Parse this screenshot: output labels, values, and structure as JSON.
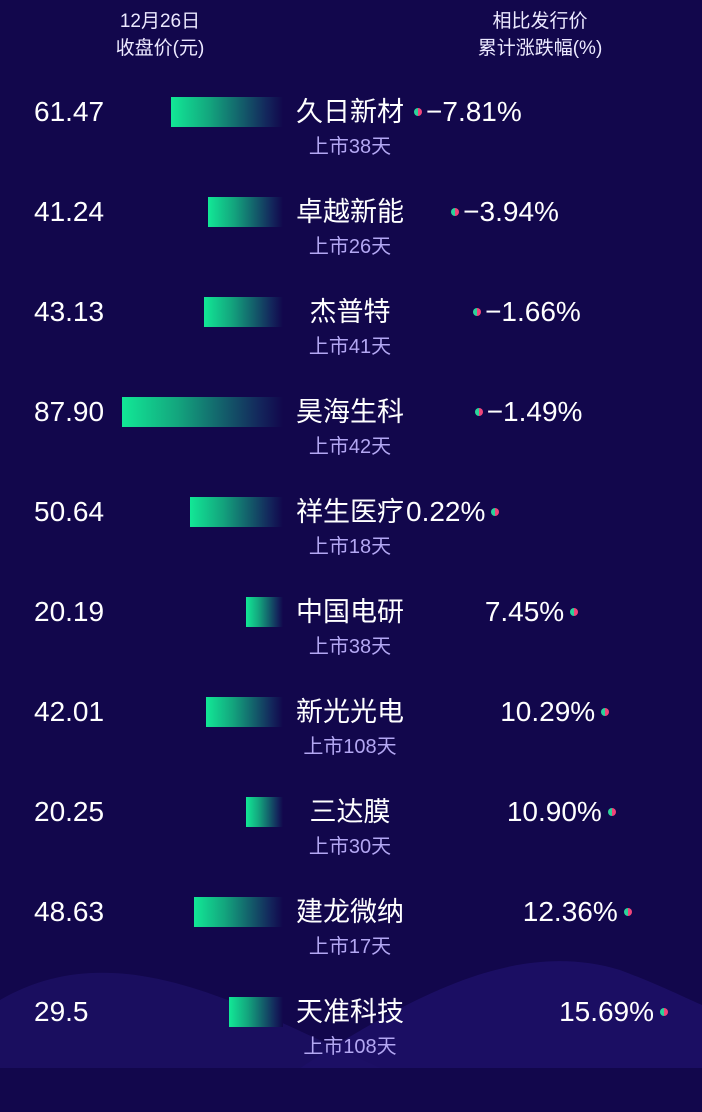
{
  "header": {
    "left_line1": "12月26日",
    "left_line2": "收盘价(元)",
    "right_line1": "相比发行价",
    "right_line2": "累计涨跌幅(%)"
  },
  "colors": {
    "background": "#12074c",
    "bar_start": "#12e896",
    "dot_green": "#2bd39a",
    "dot_red": "#f0457a"
  },
  "chart_data": {
    "type": "bar",
    "rows": [
      {
        "name": "久日新材",
        "price": 61.47,
        "price_label": "61.47",
        "change": -7.81,
        "change_label": "−7.81%",
        "listed": "上市38天"
      },
      {
        "name": "卓越新能",
        "price": 41.24,
        "price_label": "41.24",
        "change": -3.94,
        "change_label": "−3.94%",
        "listed": "上市26天"
      },
      {
        "name": "杰普特",
        "price": 43.13,
        "price_label": "43.13",
        "change": -1.66,
        "change_label": "−1.66%",
        "listed": "上市41天"
      },
      {
        "name": "昊海生科",
        "price": 87.9,
        "price_label": "87.90",
        "change": -1.49,
        "change_label": "−1.49%",
        "listed": "上市42天"
      },
      {
        "name": "祥生医疗",
        "price": 50.64,
        "price_label": "50.64",
        "change": 0.22,
        "change_label": "0.22%",
        "listed": "上市18天"
      },
      {
        "name": "中国电研",
        "price": 20.19,
        "price_label": "20.19",
        "change": 7.45,
        "change_label": "7.45%",
        "listed": "上市38天"
      },
      {
        "name": "新光光电",
        "price": 42.01,
        "price_label": "42.01",
        "change": 10.29,
        "change_label": "10.29%",
        "listed": "上市108天"
      },
      {
        "name": "三达膜",
        "price": 20.25,
        "price_label": "20.25",
        "change": 10.9,
        "change_label": "10.90%",
        "listed": "上市30天"
      },
      {
        "name": "建龙微纳",
        "price": 48.63,
        "price_label": "48.63",
        "change": 12.36,
        "change_label": "12.36%",
        "listed": "上市17天"
      },
      {
        "name": "天准科技",
        "price": 29.5,
        "price_label": "29.5",
        "change": 15.69,
        "change_label": "15.69%",
        "listed": "上市108天"
      }
    ]
  }
}
